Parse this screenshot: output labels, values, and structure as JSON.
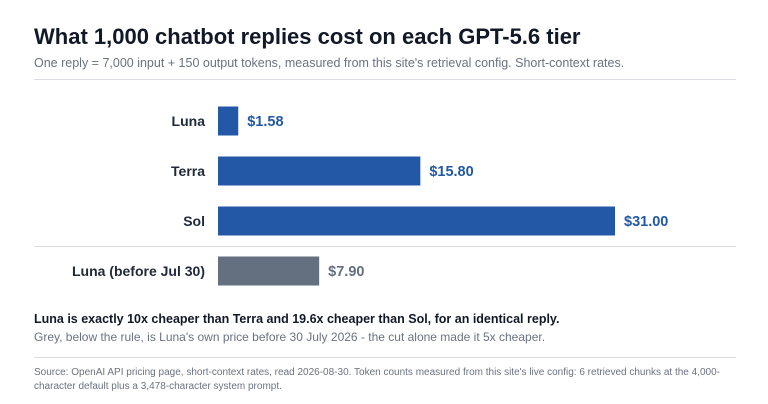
{
  "header": {
    "title": "What 1,000 chatbot replies cost on each GPT-5.6 tier",
    "subtitle": "One reply = 7,000 input + 150 output tokens, measured from this site's retrieval config. Short-context rates."
  },
  "colors": {
    "current": "#2358a6",
    "previous": "#64707f",
    "current_label": "#2358a6",
    "previous_label": "#64707f"
  },
  "chart_data": {
    "type": "bar",
    "orientation": "horizontal",
    "title": "What 1,000 chatbot replies cost on each GPT-5.6 tier",
    "categories": [
      "Luna",
      "Terra",
      "Sol",
      "Luna (before Jul 30)"
    ],
    "values": [
      1.58,
      15.8,
      31.0,
      7.9
    ],
    "value_labels": [
      "$1.58",
      "$15.80",
      "$31.00",
      "$7.90"
    ],
    "groups": [
      "current",
      "current",
      "current",
      "previous"
    ],
    "xlim": [
      0,
      31.0
    ],
    "grid": false,
    "legend": "none"
  },
  "notes": {
    "highlight": "Luna is exactly 10x cheaper than Terra and 19.6x cheaper than Sol, for an identical reply.",
    "detail": "Grey, below the rule, is Luna's own price before 30 July 2026 - the cut alone made it 5x cheaper."
  },
  "source": "Source: OpenAI API pricing page, short-context rates, read 2026-08-30. Token counts measured from this site's live config: 6 retrieved chunks at the 4,000-character default plus a 3,478-character system prompt."
}
